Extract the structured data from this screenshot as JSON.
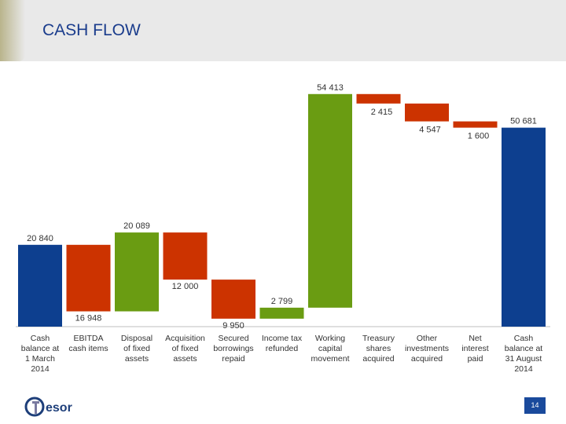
{
  "header": {
    "title": "CASH FLOW"
  },
  "colors": {
    "blue": "#0d3f8f",
    "red": "#cc3300",
    "green": "#6a9c12",
    "title": "#1a3c8c"
  },
  "logo": {
    "text": "esor",
    "icon": "tesor-logo-icon"
  },
  "page_number": "14",
  "chart_data": {
    "type": "waterfall",
    "title": "CASH FLOW",
    "unit_note": "",
    "categories": [
      "Cash balance at 1 March 2014",
      "EBITDA cash items",
      "Disposal of fixed assets",
      "Acquisition of fixed assets",
      "Secured borrowings repaid",
      "Income tax refunded",
      "Working capital movement",
      "Treasury shares acquired",
      "Other investments acquired",
      "Net interest paid",
      "Cash balance at 31 August 2014"
    ],
    "category_lines": [
      [
        "Cash",
        "balance at",
        "1 March",
        "2014"
      ],
      [
        "EBITDA",
        "cash items"
      ],
      [
        "Disposal",
        "of fixed",
        "assets"
      ],
      [
        "Acquisition",
        "of fixed",
        "assets"
      ],
      [
        "Secured",
        "borrowings",
        "repaid"
      ],
      [
        "Income tax",
        "refunded"
      ],
      [
        "Working",
        "capital",
        "movement"
      ],
      [
        "Treasury",
        "shares",
        "acquired"
      ],
      [
        "Other",
        "investments",
        "acquired"
      ],
      [
        "Net",
        "interest",
        "paid"
      ],
      [
        "Cash",
        "balance at",
        "31 August",
        "2014"
      ]
    ],
    "values": [
      20840,
      -16948,
      20089,
      -12000,
      -9950,
      2799,
      54413,
      -2415,
      -4547,
      -1600,
      50681
    ],
    "labels": [
      "20 840",
      "16 948",
      "20 089",
      "12 000",
      "9 950",
      "2 799",
      "54 413",
      "2 415",
      "4 547",
      "1 600",
      "50 681"
    ],
    "kinds": [
      "total",
      "negative",
      "positive",
      "negative",
      "negative",
      "positive",
      "positive",
      "negative",
      "negative",
      "negative",
      "total"
    ],
    "legend": []
  }
}
